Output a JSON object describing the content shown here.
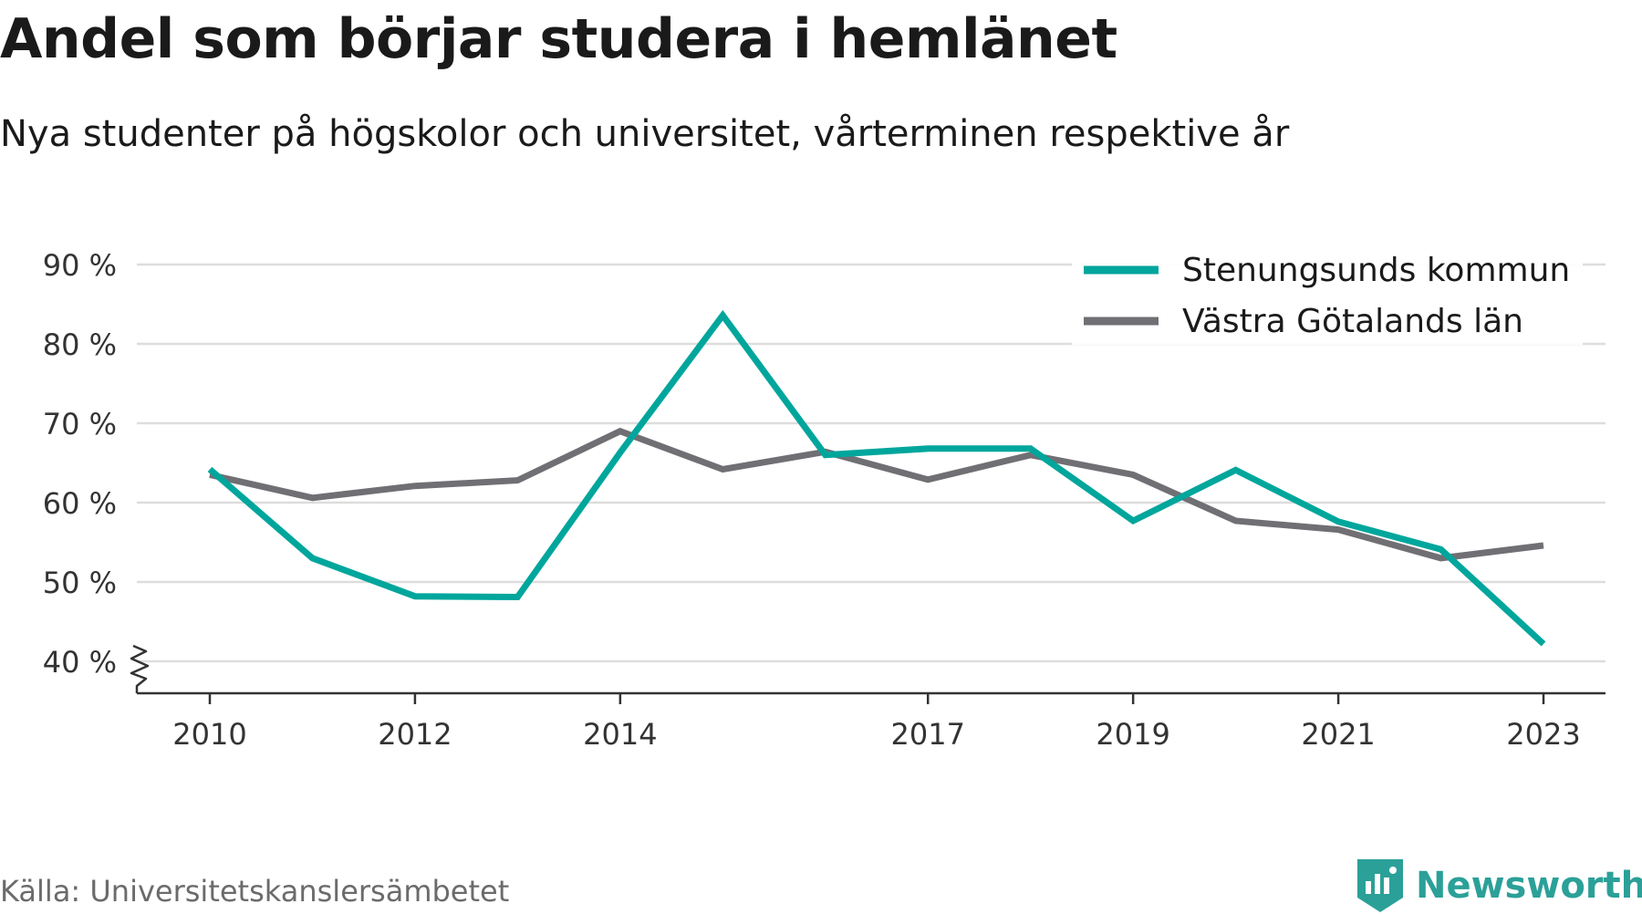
{
  "header": {
    "title": "Andel som börjar studera i hemlänet",
    "subtitle": "Nya studenter på högskolor och universitet, vårterminen respektive år"
  },
  "footer": {
    "source": "Källa: Universitetskanslersämbetet",
    "brand": "Newsworthy"
  },
  "colors": {
    "series_primary": "#00a69c",
    "series_secondary": "#706f74",
    "grid": "#dddddd",
    "axis": "#333333",
    "brand": "#2ba098"
  },
  "chart_data": {
    "type": "line",
    "x": [
      2010,
      2011,
      2012,
      2013,
      2014,
      2015,
      2016,
      2017,
      2018,
      2019,
      2020,
      2021,
      2022,
      2023
    ],
    "x_tick_labels": [
      "2010",
      "2012",
      "2014",
      "2017",
      "2019",
      "2021",
      "2023"
    ],
    "x_tick_values": [
      2010,
      2012,
      2014,
      2017,
      2019,
      2021,
      2023
    ],
    "y_tick_labels": [
      "90 %",
      "80 %",
      "70 %",
      "60 %",
      "50 %",
      "40 %"
    ],
    "y_tick_values": [
      90,
      80,
      70,
      60,
      50,
      40
    ],
    "ylim": [
      36,
      90
    ],
    "axis_break": true,
    "grid": true,
    "legend_position": "top-right",
    "series": [
      {
        "name": "Stenungsunds kommun",
        "color": "#00a69c",
        "values": [
          64.2,
          53,
          48.2,
          48.1,
          66.3,
          83.6,
          66.0,
          66.8,
          66.8,
          57.7,
          64.1,
          57.6,
          54.1,
          42.2
        ]
      },
      {
        "name": "Västra Götalands län",
        "color": "#706f74",
        "values": [
          63.5,
          60.6,
          62.1,
          62.8,
          69.0,
          64.2,
          66.4,
          62.9,
          66.0,
          63.5,
          57.7,
          56.6,
          53.0,
          54.6
        ]
      }
    ]
  }
}
